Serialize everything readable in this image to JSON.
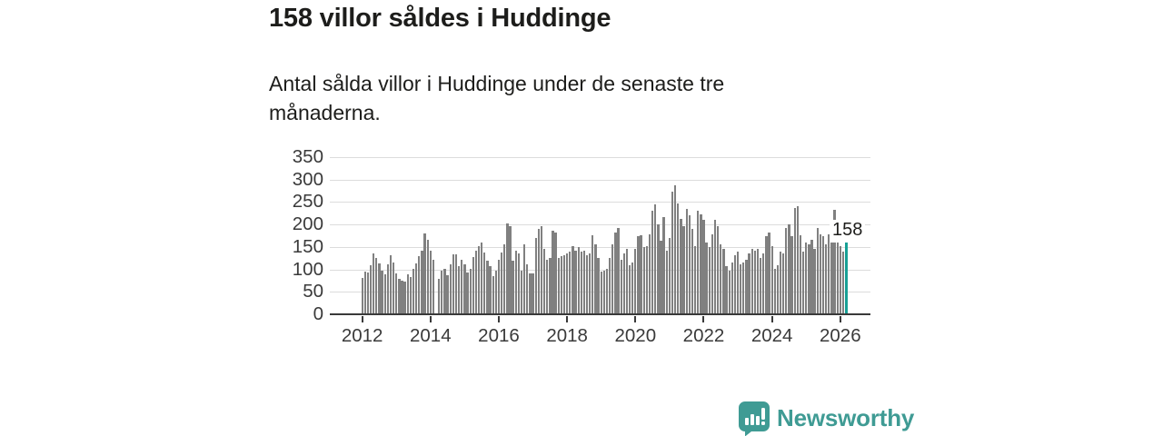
{
  "header": {
    "title": "158 villor såldes i Huddinge",
    "subtitle": "Antal sålda villor i Huddinge under de senaste tre månaderna."
  },
  "chart_data": {
    "type": "bar",
    "title": "158 villor såldes i Huddinge",
    "xlabel": "",
    "ylabel": "",
    "x_monthly_start": "2012-01",
    "x_monthly_end": "2026-03",
    "values": [
      78,
      93,
      92,
      108,
      134,
      124,
      112,
      95,
      88,
      110,
      130,
      113,
      90,
      76,
      73,
      70,
      86,
      80,
      100,
      112,
      127,
      140,
      179,
      164,
      140,
      120,
      0,
      76,
      96,
      100,
      84,
      110,
      131,
      131,
      105,
      120,
      110,
      92,
      100,
      125,
      140,
      150,
      158,
      135,
      118,
      105,
      82,
      95,
      120,
      135,
      154,
      200,
      194,
      117,
      140,
      134,
      96,
      154,
      110,
      90,
      90,
      167,
      188,
      194,
      144,
      120,
      123,
      184,
      181,
      123,
      127,
      130,
      134,
      137,
      150,
      140,
      147,
      137,
      140,
      130,
      134,
      174,
      154,
      123,
      93,
      96,
      100,
      123,
      154,
      181,
      191,
      120,
      134,
      144,
      107,
      113,
      144,
      171,
      174,
      147,
      150,
      177,
      228,
      242,
      198,
      161,
      215,
      140,
      167,
      272,
      286,
      245,
      211,
      194,
      232,
      218,
      188,
      150,
      229,
      221,
      208,
      157,
      147,
      177,
      208,
      194,
      154,
      144,
      106,
      96,
      113,
      130,
      137,
      110,
      113,
      120,
      134,
      144,
      140,
      144,
      123,
      134,
      171,
      181,
      150,
      100,
      107,
      137,
      134,
      191,
      198,
      171,
      235,
      238,
      174,
      137,
      157,
      154,
      164,
      144,
      191,
      177,
      171,
      154,
      177,
      181,
      230,
      177,
      150,
      137,
      158
    ],
    "highlight_last": true,
    "highlight_value": 158,
    "annotation": "158",
    "bar_color": "#808080",
    "highlight_color": "#18a096",
    "ylim": [
      0,
      350
    ],
    "yticks": [
      0,
      50,
      100,
      150,
      200,
      250,
      300,
      350
    ],
    "xticks": [
      "2012",
      "2014",
      "2016",
      "2018",
      "2020",
      "2022",
      "2024",
      "2026"
    ],
    "grid": true,
    "legend": null
  },
  "footer": {
    "brand": "Newsworthy",
    "brand_color": "#3f9b94"
  }
}
